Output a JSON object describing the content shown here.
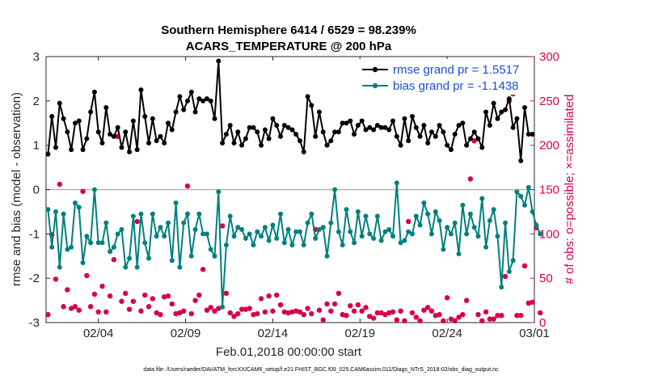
{
  "chart_data": {
    "type": "line",
    "title": "Southern Hemisphere 6414 / 6529 = 98.239%",
    "subtitle": "ACARS_TEMPERATURE @ 200 hPa",
    "xlabel": "Feb.01,2018 00:00:00 start",
    "ylabel_left": "rmse and bias (model - observation)",
    "ylabel_right": "# of obs: o=possible; ×=assimilated",
    "xlim": [
      0,
      28
    ],
    "ylim_left": [
      -3,
      3
    ],
    "ylim_right": [
      0,
      300
    ],
    "x_tick_values": [
      3,
      8,
      13,
      18,
      23,
      28
    ],
    "x_tick_labels": [
      "02/04",
      "02/09",
      "02/14",
      "02/19",
      "02/24",
      "03/01"
    ],
    "y_ticks_left": [
      "3",
      "2",
      "1",
      "0",
      "-1",
      "-2",
      "-3"
    ],
    "y_ticks_right": [
      "300",
      "250",
      "200",
      "150",
      "100",
      "50",
      "0"
    ],
    "legend": [
      "rmse grand pr = 1.5517",
      "bias grand pr = -1.1438"
    ],
    "footnote": "data file: /Users/raeder/DAI/ATM_forcXX/CAM6_setup/f.e21.FHIST_BGC.f09_025.CAM6assim.011/Diags_NTrS_2018-02/obs_diag_output.nc",
    "colors": {
      "rmse": "#000000",
      "bias": "#00807f",
      "obs": "#d6004c",
      "zero_line": "#b4b4b4"
    },
    "series": [
      {
        "name": "rmse",
        "values": [
          0.8,
          1.65,
          0.95,
          1.95,
          1.6,
          1.3,
          0.9,
          1.5,
          1.55,
          0.9,
          1.15,
          1.75,
          2.2,
          1.3,
          1.05,
          1.85,
          1.25,
          1.2,
          1.4,
          0.95,
          1.3,
          0.85,
          1.55,
          0.9,
          2.25,
          1.65,
          1.05,
          1.6,
          1.1,
          1.2,
          1.05,
          1.5,
          1.35,
          1.75,
          2.1,
          1.8,
          2.0,
          2.2,
          1.75,
          2.05,
          2.0,
          2.05,
          2.0,
          1.6,
          2.9,
          1.05,
          1.25,
          1.45,
          1.05,
          1.3,
          1.0,
          1.15,
          1.4,
          1.4,
          1.3,
          1.0,
          1.35,
          1.15,
          1.6,
          1.45,
          1.2,
          1.45,
          1.4,
          1.35,
          1.25,
          1.1,
          0.85,
          2.1,
          1.9,
          1.2,
          1.75,
          1.3,
          1.0,
          1.1,
          1.3,
          1.3,
          1.5,
          1.5,
          1.55,
          1.25,
          1.45,
          1.55,
          1.35,
          1.4,
          1.35,
          1.45,
          1.4,
          1.4,
          1.35,
          1.55,
          1.2,
          1.0,
          1.6,
          1.1,
          1.65,
          1.4,
          1.2,
          1.45,
          1.05,
          1.3,
          1.2,
          1.45,
          1.3,
          1.0,
          0.9,
          1.25,
          1.45,
          1.5,
          1.0,
          1.15,
          1.3,
          1.15,
          0.95,
          1.75,
          1.45,
          1.95,
          1.6,
          1.75,
          1.8,
          2.05,
          1.4,
          1.6,
          0.65,
          1.85,
          1.25,
          1.25
        ]
      },
      {
        "name": "bias",
        "values": [
          -0.45,
          -1.3,
          -0.5,
          -1.75,
          -0.55,
          -1.35,
          -1.3,
          -0.3,
          -0.4,
          -1.65,
          -1.05,
          -1.2,
          0.0,
          -1.2,
          -1.2,
          -0.75,
          -1.4,
          -1.3,
          -1.0,
          -0.9,
          -1.75,
          -1.55,
          -0.6,
          -1.75,
          -0.55,
          -1.2,
          -1.55,
          -0.55,
          -1.05,
          -0.85,
          -1.05,
          -0.75,
          -1.6,
          -0.3,
          -1.75,
          -0.75,
          -0.55,
          -1.5,
          -0.9,
          -0.55,
          -1.0,
          -1.0,
          -1.35,
          -1.5,
          -0.05,
          -2.65,
          -1.25,
          -0.6,
          -1.05,
          -0.85,
          -0.9,
          -1.1,
          -1.0,
          -1.25,
          -0.95,
          -1.05,
          -0.85,
          -1.15,
          -0.8,
          -1.1,
          -0.55,
          -1.2,
          -0.9,
          -1.25,
          -0.95,
          -0.95,
          -1.25,
          -0.75,
          -0.55,
          -1.1,
          -0.9,
          -0.85,
          -1.5,
          -0.75,
          0.0,
          -0.95,
          -1.25,
          -0.45,
          -0.95,
          -1.2,
          -0.5,
          -1.05,
          -0.6,
          -1.0,
          -1.1,
          -0.6,
          -1.15,
          -0.95,
          -0.9,
          -1.05,
          0.15,
          -1.2,
          -1.15,
          -0.95,
          -1.0,
          -0.6,
          -0.8,
          -0.3,
          -0.55,
          -1.0,
          -0.5,
          -0.7,
          -1.35,
          -0.85,
          -1.0,
          -0.75,
          -1.45,
          -0.35,
          -1.0,
          -0.55,
          -0.85,
          -1.05,
          -0.2,
          -1.3,
          -0.7,
          -0.45,
          -1.05,
          -2.2,
          -0.75,
          -1.85,
          -1.6,
          -0.05,
          -0.15,
          -0.35,
          0.05,
          -0.5,
          -0.8,
          -1.0
        ]
      },
      {
        "name": "obs_possible",
        "values": [
          9,
          99,
          49,
          156,
          18,
          37,
          16,
          18,
          14,
          148,
          53,
          18,
          32,
          12,
          41,
          12,
          30,
          71,
          210,
          24,
          33,
          15,
          24,
          114,
          13,
          31,
          18,
          27,
          11,
          9,
          29,
          30,
          21,
          10,
          11,
          13,
          154,
          10,
          25,
          31,
          60,
          14,
          17,
          13,
          16,
          109,
          33,
          11,
          7,
          10,
          15,
          15,
          16,
          9,
          10,
          27,
          12,
          30,
          13,
          31,
          20,
          12,
          11,
          12,
          13,
          12,
          9,
          16,
          10,
          105,
          14,
          3,
          21,
          13,
          21,
          33,
          9,
          8,
          19,
          13,
          20,
          13,
          17,
          7,
          5,
          11,
          11,
          9,
          11,
          12,
          3,
          13,
          2,
          114,
          11,
          6,
          2,
          14,
          17,
          13,
          8,
          9,
          2,
          28,
          4,
          2,
          6,
          9,
          25,
          162,
          205,
          9,
          2,
          12,
          4,
          4,
          8,
          8,
          52,
          250,
          258,
          8,
          8,
          64,
          22,
          23,
          107,
          11
        ]
      },
      {
        "name": "obs_assimilated",
        "values": [
          9,
          99,
          49,
          156,
          18,
          37,
          16,
          18,
          14,
          148,
          53,
          18,
          32,
          12,
          41,
          12,
          30,
          71,
          210,
          24,
          33,
          15,
          24,
          114,
          13,
          31,
          18,
          27,
          11,
          9,
          29,
          30,
          21,
          10,
          11,
          13,
          154,
          10,
          25,
          31,
          60,
          14,
          17,
          13,
          16,
          109,
          33,
          11,
          7,
          10,
          15,
          15,
          16,
          9,
          10,
          27,
          12,
          30,
          13,
          31,
          20,
          12,
          11,
          12,
          13,
          12,
          9,
          16,
          10,
          105,
          14,
          3,
          21,
          13,
          21,
          33,
          9,
          8,
          19,
          13,
          20,
          13,
          17,
          7,
          5,
          11,
          11,
          9,
          11,
          12,
          3,
          13,
          2,
          114,
          11,
          6,
          2,
          14,
          17,
          13,
          8,
          9,
          2,
          28,
          4,
          2,
          6,
          9,
          25,
          162,
          205,
          9,
          2,
          12,
          4,
          4,
          8,
          8,
          52,
          250,
          258,
          8,
          8,
          64,
          22,
          23,
          107,
          11
        ]
      }
    ]
  }
}
